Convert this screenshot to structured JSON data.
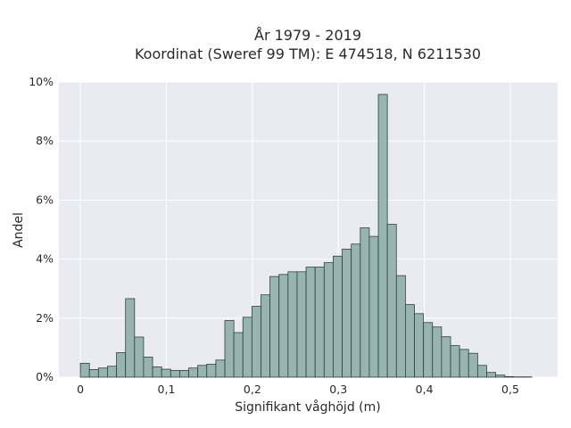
{
  "chart_data": {
    "type": "bar",
    "title": "År 1979 - 2019",
    "subtitle": "Koordinat (Sweref 99 TM): E 474518, N 6211530",
    "xlabel": "Signifikant våghöjd (m)",
    "ylabel": "Andel",
    "xlim": [
      -0.025,
      0.555
    ],
    "ylim": [
      0,
      0.1
    ],
    "x_ticks": [
      0,
      0.1,
      0.2,
      0.3,
      0.4,
      0.5
    ],
    "x_tick_labels": [
      "0",
      "0,1",
      "0,2",
      "0,3",
      "0,4",
      "0,5"
    ],
    "y_ticks": [
      0,
      0.02,
      0.04,
      0.06,
      0.08,
      0.1
    ],
    "y_tick_labels": [
      "0%",
      "2%",
      "4%",
      "6%",
      "8%",
      "10%"
    ],
    "bin_width": 0.0105,
    "bin_start": 0,
    "values": [
      0.0047,
      0.0026,
      0.0031,
      0.0037,
      0.0083,
      0.0266,
      0.0136,
      0.0068,
      0.0035,
      0.0027,
      0.0023,
      0.0023,
      0.0031,
      0.004,
      0.0044,
      0.0058,
      0.0192,
      0.0151,
      0.0203,
      0.024,
      0.0279,
      0.0341,
      0.0348,
      0.0357,
      0.0357,
      0.0373,
      0.0373,
      0.0388,
      0.041,
      0.0434,
      0.0451,
      0.0506,
      0.0477,
      0.0958,
      0.0518,
      0.0344,
      0.0246,
      0.0215,
      0.0185,
      0.017,
      0.0137,
      0.0107,
      0.0094,
      0.0081,
      0.004,
      0.0016,
      0.0007,
      0.0002,
      0.0001,
      0.0001
    ],
    "grid": true,
    "colors": {
      "bar_fill": "#98b4b2",
      "bar_edge": "#2f3f3e",
      "plot_bg": "#eaeaf2",
      "grid": "#ffffff"
    }
  }
}
